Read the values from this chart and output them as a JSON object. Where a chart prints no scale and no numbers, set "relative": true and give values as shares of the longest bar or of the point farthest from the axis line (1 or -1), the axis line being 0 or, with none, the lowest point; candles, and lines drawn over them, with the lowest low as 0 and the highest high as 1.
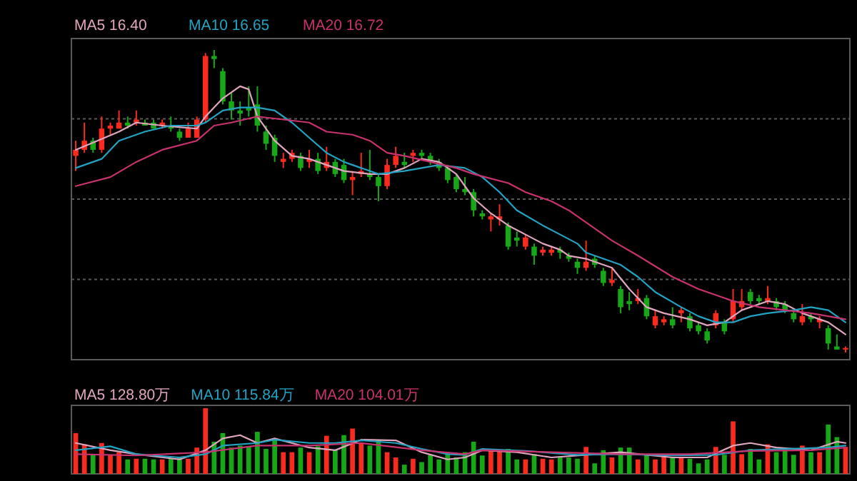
{
  "chart_data": [
    {
      "type": "candlestick",
      "relative": true,
      "grid": "y",
      "legend": "top left",
      "categories": [
        null,
        null,
        null,
        null,
        null,
        null,
        null,
        null,
        null,
        null,
        null,
        null,
        null,
        null,
        null,
        null,
        null,
        null,
        null,
        null,
        null,
        null,
        null,
        null,
        null,
        null,
        null,
        null,
        null,
        null,
        null,
        null,
        null,
        null,
        null,
        null,
        null,
        null,
        null,
        null,
        null,
        null,
        null,
        null,
        null,
        null,
        null,
        null,
        null,
        null,
        null,
        null,
        null,
        null,
        null,
        null,
        null,
        null,
        null,
        null,
        null,
        null,
        null,
        null,
        null,
        null,
        null,
        null,
        null,
        null,
        null,
        null,
        null,
        null,
        null,
        null,
        null,
        null,
        null,
        null,
        null,
        null,
        null,
        null,
        null,
        null,
        null,
        null,
        null,
        null
      ],
      "ohlc": [
        [
          0.65,
          0.7,
          0.6,
          0.67
        ],
        [
          0.67,
          0.76,
          0.66,
          0.7
        ],
        [
          0.7,
          0.71,
          0.66,
          0.67
        ],
        [
          0.67,
          0.78,
          0.66,
          0.74
        ],
        [
          0.74,
          0.76,
          0.72,
          0.75
        ],
        [
          0.74,
          0.8,
          0.74,
          0.76
        ],
        [
          0.76,
          0.78,
          0.74,
          0.75
        ],
        [
          0.76,
          0.8,
          0.75,
          0.77
        ],
        [
          0.76,
          0.77,
          0.75,
          0.75
        ],
        [
          0.76,
          0.77,
          0.74,
          0.74
        ],
        [
          0.75,
          0.77,
          0.74,
          0.76
        ],
        [
          0.75,
          0.78,
          0.73,
          0.74
        ],
        [
          0.73,
          0.74,
          0.7,
          0.71
        ],
        [
          0.71,
          0.76,
          0.71,
          0.74
        ],
        [
          0.71,
          0.78,
          0.71,
          0.77
        ],
        [
          0.77,
          0.99,
          0.76,
          0.98
        ],
        [
          0.98,
          1,
          0.94,
          0.97
        ],
        [
          0.93,
          0.94,
          0.82,
          0.83
        ],
        [
          0.83,
          0.86,
          0.77,
          0.8
        ],
        [
          0.8,
          0.83,
          0.75,
          0.79
        ],
        [
          0.81,
          0.88,
          0.78,
          0.8
        ],
        [
          0.82,
          0.88,
          0.73,
          0.75
        ],
        [
          0.73,
          0.75,
          0.67,
          0.69
        ],
        [
          0.71,
          0.72,
          0.63,
          0.65
        ],
        [
          0.63,
          0.66,
          0.61,
          0.64
        ],
        [
          0.64,
          0.67,
          0.63,
          0.66
        ],
        [
          0.65,
          0.66,
          0.6,
          0.61
        ],
        [
          0.63,
          0.67,
          0.61,
          0.64
        ],
        [
          0.64,
          0.66,
          0.59,
          0.6
        ],
        [
          0.61,
          0.68,
          0.6,
          0.63
        ],
        [
          0.63,
          0.64,
          0.58,
          0.59
        ],
        [
          0.62,
          0.64,
          0.56,
          0.57
        ],
        [
          0.57,
          0.6,
          0.52,
          0.58
        ],
        [
          0.59,
          0.66,
          0.58,
          0.6
        ],
        [
          0.59,
          0.67,
          0.57,
          0.58
        ],
        [
          0.58,
          0.59,
          0.5,
          0.55
        ],
        [
          0.55,
          0.64,
          0.54,
          0.62
        ],
        [
          0.62,
          0.68,
          0.61,
          0.65
        ],
        [
          0.63,
          0.66,
          0.61,
          0.62
        ],
        [
          0.65,
          0.67,
          0.63,
          0.66
        ],
        [
          0.66,
          0.67,
          0.64,
          0.65
        ],
        [
          0.65,
          0.66,
          0.62,
          0.63
        ],
        [
          0.63,
          0.64,
          0.6,
          0.61
        ],
        [
          0.61,
          0.62,
          0.56,
          0.57
        ],
        [
          0.58,
          0.59,
          0.53,
          0.54
        ],
        [
          0.54,
          0.58,
          0.52,
          0.53
        ],
        [
          0.53,
          0.54,
          0.45,
          0.47
        ],
        [
          0.46,
          0.47,
          0.44,
          0.45
        ],
        [
          0.44,
          0.46,
          0.4,
          0.45
        ],
        [
          0.44,
          0.49,
          0.42,
          0.45
        ],
        [
          0.42,
          0.43,
          0.34,
          0.35
        ],
        [
          0.38,
          0.4,
          0.35,
          0.37
        ],
        [
          0.35,
          0.39,
          0.34,
          0.38
        ],
        [
          0.35,
          0.36,
          0.29,
          0.32
        ],
        [
          0.33,
          0.35,
          0.32,
          0.34
        ],
        [
          0.33,
          0.35,
          0.32,
          0.34
        ],
        [
          0.34,
          0.35,
          0.31,
          0.33
        ],
        [
          0.32,
          0.33,
          0.3,
          0.31
        ],
        [
          0.3,
          0.31,
          0.26,
          0.28
        ],
        [
          0.28,
          0.37,
          0.27,
          0.3
        ],
        [
          0.31,
          0.32,
          0.28,
          0.29
        ],
        [
          0.27,
          0.28,
          0.22,
          0.23
        ],
        [
          0.23,
          0.28,
          0.22,
          0.24
        ],
        [
          0.21,
          0.22,
          0.13,
          0.15
        ],
        [
          0.17,
          0.2,
          0.14,
          0.16
        ],
        [
          0.17,
          0.21,
          0.16,
          0.18
        ],
        [
          0.18,
          0.19,
          0.11,
          0.12
        ],
        [
          0.09,
          0.14,
          0.08,
          0.12
        ],
        [
          0.1,
          0.12,
          0.09,
          0.11
        ],
        [
          0.11,
          0.15,
          0.08,
          0.09
        ],
        [
          0.13,
          0.15,
          0.1,
          0.14
        ],
        [
          0.12,
          0.13,
          0.07,
          0.08
        ],
        [
          0.09,
          0.1,
          0.06,
          0.07
        ],
        [
          0.07,
          0.08,
          0.03,
          0.04
        ],
        [
          0.09,
          0.14,
          0.08,
          0.13
        ],
        [
          0.1,
          0.11,
          0.06,
          0.07
        ],
        [
          0.11,
          0.21,
          0.1,
          0.17
        ],
        [
          0.15,
          0.21,
          0.14,
          0.17
        ],
        [
          0.2,
          0.21,
          0.16,
          0.17
        ],
        [
          0.18,
          0.19,
          0.16,
          0.17
        ],
        [
          0.17,
          0.22,
          0.16,
          0.18
        ],
        [
          0.17,
          0.18,
          0.14,
          0.15
        ],
        [
          0.16,
          0.17,
          0.13,
          0.14
        ],
        [
          0.13,
          0.14,
          0.1,
          0.11
        ],
        [
          0.1,
          0.16,
          0.09,
          0.12
        ],
        [
          0.12,
          0.13,
          0.1,
          0.11
        ],
        [
          0.1,
          0.12,
          0.08,
          0.11
        ],
        [
          0.08,
          0.09,
          0.01,
          0.03
        ],
        [
          0.02,
          0.06,
          0.01,
          0.01
        ],
        [
          0.01,
          0.02,
          0,
          0.015
        ]
      ],
      "series": [
        {
          "type": "line",
          "name": "MA5 16.40",
          "color": "#e0a6bf",
          "values": [
            0.67,
            null,
            null,
            null,
            null,
            0.73,
            null,
            0.76,
            null,
            null,
            0.75,
            null,
            null,
            null,
            0.74,
            0.78,
            null,
            0.84,
            null,
            0.88,
            0.87,
            0.78,
            null,
            0.7,
            null,
            0.65,
            null,
            0.64,
            null,
            0.62,
            null,
            0.6,
            null,
            null,
            0.59,
            null,
            0.59,
            null,
            0.61,
            null,
            0.64,
            null,
            0.63,
            null,
            0.59,
            null,
            0.51,
            null,
            0.46,
            null,
            0.42,
            null,
            0.39,
            null,
            0.36,
            null,
            0.34,
            0.32,
            null,
            0.31,
            0.3,
            null,
            0.28,
            null,
            0.21,
            null,
            0.15,
            null,
            0.13,
            null,
            null,
            0.11,
            null,
            0.09,
            null,
            0.1,
            null,
            0.14,
            null,
            null,
            0.17,
            null,
            0.16,
            null,
            0.13,
            null,
            null,
            0.1,
            null,
            0.06
          ]
        },
        {
          "type": "line",
          "name": "MA10 16.65",
          "color": "#22a3c2",
          "values": [
            0.61,
            null,
            null,
            0.64,
            null,
            0.7,
            null,
            null,
            0.73,
            null,
            null,
            0.75,
            null,
            null,
            0.75,
            0.76,
            null,
            0.8,
            null,
            0.81,
            null,
            0.81,
            null,
            0.8,
            null,
            0.76,
            null,
            0.71,
            null,
            0.66,
            null,
            0.63,
            null,
            0.61,
            null,
            0.59,
            null,
            null,
            0.6,
            null,
            0.61,
            null,
            0.62,
            null,
            null,
            0.61,
            null,
            0.58,
            null,
            0.53,
            null,
            0.47,
            null,
            null,
            0.42,
            null,
            0.39,
            null,
            0.36,
            0.33,
            0.32,
            null,
            null,
            0.29,
            null,
            0.25,
            null,
            0.2,
            null,
            null,
            0.15,
            null,
            0.12,
            null,
            0.1,
            null,
            0.1,
            null,
            0.12,
            null,
            0.13,
            null,
            null,
            0.14,
            null,
            0.15,
            null,
            0.14,
            null,
            0.1
          ]
        },
        {
          "type": "line",
          "name": "MA20 16.72",
          "color": "#c8326e",
          "values": [
            0.55,
            null,
            null,
            null,
            0.58,
            null,
            null,
            0.63,
            null,
            null,
            0.67,
            null,
            null,
            null,
            0.7,
            null,
            0.75,
            null,
            0.76,
            null,
            null,
            0.78,
            null,
            null,
            0.77,
            null,
            null,
            0.76,
            null,
            0.73,
            null,
            null,
            0.72,
            null,
            0.7,
            null,
            0.66,
            null,
            0.65,
            null,
            null,
            0.63,
            null,
            null,
            0.61,
            null,
            0.59,
            null,
            null,
            null,
            0.56,
            null,
            0.53,
            null,
            null,
            0.5,
            null,
            0.47,
            null,
            0.43,
            null,
            null,
            0.37,
            null,
            null,
            0.32,
            null,
            null,
            null,
            0.25,
            null,
            null,
            0.21,
            null,
            null,
            null,
            0.17,
            null,
            null,
            0.15,
            null,
            null,
            0.14,
            null,
            null,
            0.13,
            null,
            null,
            null,
            0.11
          ]
        }
      ]
    },
    {
      "type": "bar",
      "relative": true,
      "legend": "top left",
      "categories": [
        null,
        null,
        null,
        null,
        null,
        null,
        null,
        null,
        null,
        null,
        null,
        null,
        null,
        null,
        null,
        null,
        null,
        null,
        null,
        null,
        null,
        null,
        null,
        null,
        null,
        null,
        null,
        null,
        null,
        null,
        null,
        null,
        null,
        null,
        null,
        null,
        null,
        null,
        null,
        null,
        null,
        null,
        null,
        null,
        null,
        null,
        null,
        null,
        null,
        null,
        null,
        null,
        null,
        null,
        null,
        null,
        null,
        null,
        null,
        null,
        null,
        null,
        null,
        null,
        null,
        null,
        null,
        null,
        null,
        null,
        null,
        null,
        null,
        null,
        null,
        null,
        null,
        null,
        null,
        null,
        null,
        null,
        null,
        null,
        null,
        null,
        null,
        null,
        null,
        null
      ],
      "values": [
        0.62,
        0.45,
        0.3,
        0.47,
        0.29,
        0.33,
        0.22,
        0.23,
        0.23,
        0.22,
        0.22,
        0.23,
        0.25,
        0.23,
        0.4,
        1,
        0.49,
        0.62,
        0.4,
        0.43,
        0.42,
        0.64,
        0.38,
        0.52,
        0.33,
        0.33,
        0.4,
        0.33,
        0.42,
        0.58,
        0.36,
        0.59,
        0.69,
        0.47,
        0.43,
        0.52,
        0.33,
        0.25,
        0.14,
        0.23,
        0.18,
        0.29,
        0.22,
        0.33,
        0.25,
        0.33,
        0.49,
        0.28,
        0.35,
        0.36,
        0.38,
        0.22,
        0.22,
        0.3,
        0.23,
        0.22,
        0.25,
        0.25,
        0.23,
        0.41,
        0.16,
        0.36,
        0.25,
        0.4,
        0.4,
        0.22,
        0.29,
        0.22,
        0.28,
        0.25,
        0.25,
        0.23,
        0.16,
        0.22,
        0.41,
        0.29,
        0.8,
        0.3,
        0.38,
        0.22,
        0.45,
        0.33,
        0.38,
        0.29,
        0.43,
        0.33,
        0.33,
        0.75,
        0.56,
        0.41
      ],
      "colors": [
        "#f92b1f",
        "#f92b1f",
        "#17a817",
        "#f92b1f",
        "#f92b1f",
        "#f92b1f",
        "#17a817",
        "#f92b1f",
        "#17a817",
        "#17a817",
        "#f92b1f",
        "#17a817",
        "#17a817",
        "#f92b1f",
        "#f92b1f",
        "#f92b1f",
        "#17a817",
        "#17a817",
        "#17a817",
        "#17a817",
        "#17a817",
        "#17a817",
        "#17a817",
        "#17a817",
        "#f92b1f",
        "#f92b1f",
        "#17a817",
        "#f92b1f",
        "#17a817",
        "#f92b1f",
        "#17a817",
        "#17a817",
        "#f92b1f",
        "#f92b1f",
        "#17a817",
        "#17a817",
        "#f92b1f",
        "#f92b1f",
        "#17a817",
        "#f92b1f",
        "#17a817",
        "#17a817",
        "#17a817",
        "#17a817",
        "#17a817",
        "#17a817",
        "#17a817",
        "#17a817",
        "#f92b1f",
        "#f92b1f",
        "#17a817",
        "#17a817",
        "#f92b1f",
        "#17a817",
        "#f92b1f",
        "#f92b1f",
        "#17a817",
        "#17a817",
        "#17a817",
        "#f92b1f",
        "#17a817",
        "#17a817",
        "#f92b1f",
        "#17a817",
        "#17a817",
        "#f92b1f",
        "#17a817",
        "#f92b1f",
        "#f92b1f",
        "#17a817",
        "#f92b1f",
        "#17a817",
        "#17a817",
        "#17a817",
        "#f92b1f",
        "#17a817",
        "#f92b1f",
        "#f92b1f",
        "#17a817",
        "#17a817",
        "#f92b1f",
        "#17a817",
        "#17a817",
        "#17a817",
        "#f92b1f",
        "#17a817",
        "#f92b1f",
        "#17a817",
        "#17a817",
        "#f92b1f"
      ],
      "series": [
        {
          "type": "line",
          "name": "MA5 128.80万",
          "color": "#e0a6bf",
          "values": [
            0.47,
            null,
            null,
            null,
            0.36,
            null,
            null,
            0.3,
            null,
            null,
            null,
            null,
            0.22,
            null,
            null,
            0.36,
            null,
            0.54,
            null,
            0.59,
            null,
            0.47,
            null,
            0.54,
            null,
            null,
            null,
            0.4,
            null,
            null,
            0.36,
            null,
            null,
            0.52,
            null,
            null,
            null,
            0.51,
            null,
            null,
            0.33,
            null,
            null,
            0.22,
            null,
            0.25,
            null,
            0.36,
            null,
            null,
            null,
            0.33,
            null,
            null,
            null,
            0.25,
            null,
            null,
            null,
            0.29,
            null,
            null,
            null,
            0.33,
            null,
            null,
            0.29,
            null,
            null,
            0.25,
            null,
            null,
            null,
            0.25,
            null,
            null,
            0.43,
            null,
            0.47,
            null,
            null,
            0.4,
            null,
            null,
            null,
            0.36,
            null,
            null,
            0.49,
            0.47
          ]
        },
        {
          "type": "line",
          "name": "MA10 115.84万",
          "color": "#22a3c2",
          "values": [
            0.36,
            null,
            null,
            null,
            0.42,
            null,
            null,
            0.3,
            null,
            null,
            null,
            null,
            0.25,
            null,
            null,
            0.3,
            null,
            0.43,
            null,
            null,
            null,
            0.47,
            null,
            0.52,
            null,
            null,
            null,
            0.47,
            null,
            null,
            0.47,
            null,
            null,
            0.51,
            null,
            null,
            null,
            0.47,
            null,
            null,
            0.38,
            null,
            null,
            0.3,
            null,
            0.29,
            null,
            0.38,
            null,
            null,
            null,
            null,
            0.35,
            null,
            null,
            null,
            null,
            null,
            0.29,
            null,
            null,
            null,
            null,
            0.3,
            null,
            null,
            null,
            null,
            null,
            0.28,
            null,
            null,
            null,
            null,
            0.29,
            null,
            null,
            null,
            0.36,
            null,
            null,
            null,
            0.38,
            null,
            null,
            null,
            null,
            0.4,
            null,
            0.43
          ]
        },
        {
          "type": "line",
          "name": "MA20 104.01万",
          "color": "#c8326e",
          "values": [
            0.3,
            null,
            null,
            null,
            null,
            null,
            null,
            0.28,
            null,
            null,
            null,
            null,
            null,
            null,
            null,
            0.33,
            null,
            null,
            null,
            null,
            null,
            0.43,
            null,
            null,
            null,
            null,
            null,
            0.43,
            null,
            null,
            null,
            null,
            null,
            0.47,
            null,
            null,
            null,
            null,
            null,
            null,
            0.36,
            null,
            null,
            null,
            null,
            0.3,
            null,
            0.36,
            null,
            null,
            null,
            null,
            null,
            null,
            null,
            0.33,
            null,
            null,
            null,
            null,
            null,
            null,
            null,
            0.3,
            null,
            null,
            null,
            null,
            null,
            null,
            null,
            0.3,
            null,
            null,
            null,
            null,
            null,
            null,
            0.35,
            null,
            null,
            null,
            null,
            null,
            null,
            0.36,
            null,
            null,
            null,
            0.4
          ]
        }
      ]
    }
  ]
}
